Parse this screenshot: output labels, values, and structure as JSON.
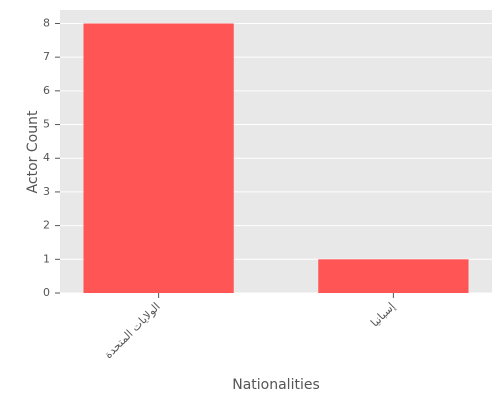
{
  "chart_data": {
    "type": "bar",
    "x_label": "Nationalities",
    "y_label": "Actor Count",
    "categories": [
      "الولايات المتحدة",
      "إسبانيا"
    ],
    "values": [
      8,
      1
    ],
    "color": "#ff5555",
    "ylim": [
      0,
      8.4
    ],
    "yticks": [
      0,
      1,
      2,
      3,
      4,
      5,
      6,
      7,
      8
    ],
    "grid": true
  }
}
